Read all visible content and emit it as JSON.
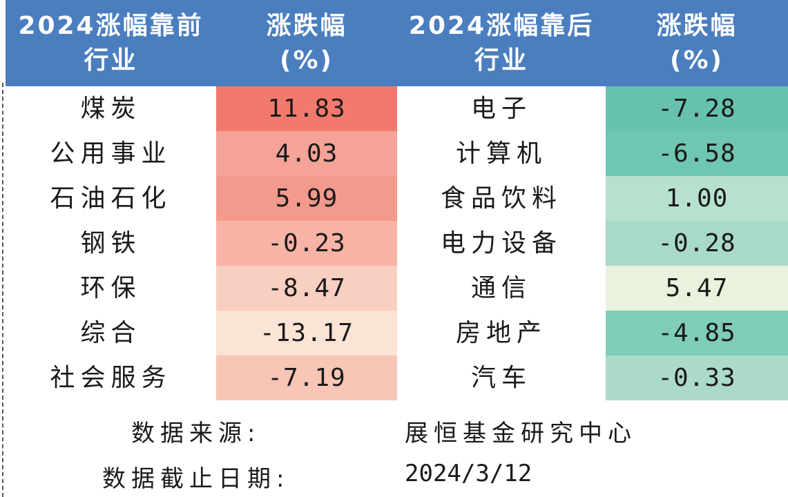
{
  "header": {
    "col1_line1": "2024涨幅靠前",
    "col1_line2": "行业",
    "col2_line1": "涨跌幅",
    "col2_line2": "(%)",
    "col3_line1": "2024涨幅靠后",
    "col3_line2": "行业",
    "col4_line1": "涨跌幅",
    "col4_line2": "(%)"
  },
  "rows": [
    {
      "top_industry": "煤炭",
      "top_change": "11.83",
      "bottom_industry": "电子",
      "bottom_change": "-7.28"
    },
    {
      "top_industry": "公用事业",
      "top_change": "4.03",
      "bottom_industry": "计算机",
      "bottom_change": "-6.58"
    },
    {
      "top_industry": "石油石化",
      "top_change": "5.99",
      "bottom_industry": "食品饮料",
      "bottom_change": "1.00"
    },
    {
      "top_industry": "钢铁",
      "top_change": "-0.23",
      "bottom_industry": "电力设备",
      "bottom_change": "-0.28"
    },
    {
      "top_industry": "环保",
      "top_change": "-8.47",
      "bottom_industry": "通信",
      "bottom_change": "5.47"
    },
    {
      "top_industry": "综合",
      "top_change": "-13.17",
      "bottom_industry": "房地产",
      "bottom_change": "-4.85"
    },
    {
      "top_industry": "社会服务",
      "top_change": "-7.19",
      "bottom_industry": "汽车",
      "bottom_change": "-0.33"
    }
  ],
  "colors": {
    "header_bg": "#4a7ebf",
    "top_change_bg": [
      "#f27a6d",
      "#f5a396",
      "#f49a8c",
      "#f7b3a6",
      "#f9cfc2",
      "#fbe3d5",
      "#f8c5b7"
    ],
    "bottom_change_bg": [
      "#66c2ad",
      "#6fc6b2",
      "#b7e0cf",
      "#a9dac7",
      "#e8f2dc",
      "#7fccb8",
      "#abdbc8"
    ]
  },
  "footer": {
    "source_label": "数据来源:",
    "source_value": "展恒基金研究中心",
    "date_label": "数据截止日期:",
    "date_value": "2024/3/12"
  }
}
